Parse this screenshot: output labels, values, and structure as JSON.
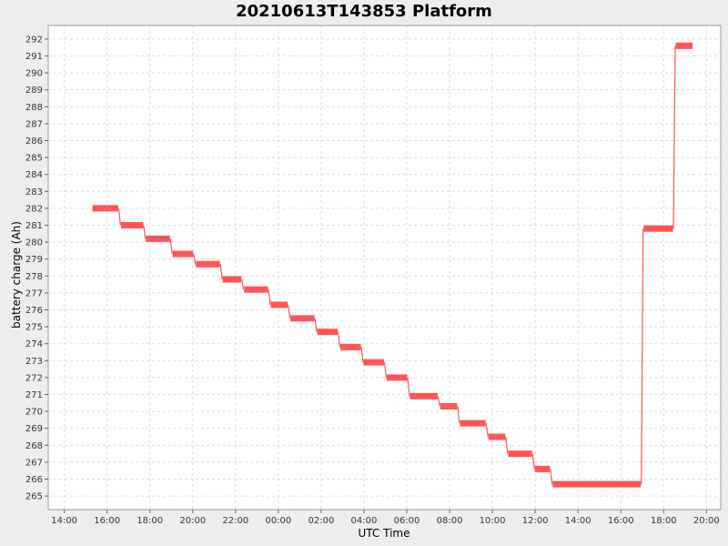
{
  "chart_data": {
    "type": "line",
    "title": "20210613T143853 Platform",
    "xlabel": "UTC Time",
    "ylabel": "battery charge (Ah)",
    "x_ticks": [
      "14:00",
      "16:00",
      "18:00",
      "20:00",
      "22:00",
      "00:00",
      "02:00",
      "04:00",
      "06:00",
      "08:00",
      "10:00",
      "12:00",
      "14:00",
      "16:00",
      "18:00",
      "20:00"
    ],
    "y_ticks": [
      "265",
      "266",
      "267",
      "268",
      "269",
      "270",
      "271",
      "272",
      "273",
      "274",
      "275",
      "276",
      "277",
      "278",
      "279",
      "280",
      "281",
      "282",
      "283",
      "284",
      "285",
      "286",
      "287",
      "288",
      "289",
      "290",
      "291",
      "292"
    ],
    "xlim": [
      "13:15",
      "20:40 (+1 day)"
    ],
    "ylim": [
      264.2,
      292.8
    ],
    "grid": true,
    "legend": "none",
    "color": "#ff5555",
    "series": [
      {
        "name": "",
        "segments": [
          {
            "start": "15:15",
            "end": "16:35",
            "value": 282.0
          },
          {
            "start": "16:35",
            "end": "17:45",
            "value": 281.0
          },
          {
            "start": "17:45",
            "end": "19:00",
            "value": 280.2
          },
          {
            "start": "19:00",
            "end": "20:05",
            "value": 279.3
          },
          {
            "start": "20:05",
            "end": "21:20",
            "value": 278.7
          },
          {
            "start": "21:20",
            "end": "22:20",
            "value": 277.8
          },
          {
            "start": "22:20",
            "end": "23:35",
            "value": 277.2
          },
          {
            "start": "23:35",
            "end": "00:30",
            "value": 276.3
          },
          {
            "start": "00:30",
            "end": "01:45",
            "value": 275.5
          },
          {
            "start": "01:45",
            "end": "02:50",
            "value": 274.7
          },
          {
            "start": "02:50",
            "end": "03:55",
            "value": 273.8
          },
          {
            "start": "03:55",
            "end": "05:00",
            "value": 272.9
          },
          {
            "start": "05:00",
            "end": "06:05",
            "value": 272.0
          },
          {
            "start": "06:05",
            "end": "07:30",
            "value": 270.9
          },
          {
            "start": "07:30",
            "end": "08:25",
            "value": 270.3
          },
          {
            "start": "08:25",
            "end": "09:45",
            "value": 269.3
          },
          {
            "start": "09:45",
            "end": "10:40",
            "value": 268.5
          },
          {
            "start": "10:40",
            "end": "11:55",
            "value": 267.5
          },
          {
            "start": "11:55",
            "end": "12:45",
            "value": 266.6
          },
          {
            "start": "12:45",
            "end": "17:00",
            "value": 265.7
          },
          {
            "start": "17:00",
            "end": "18:30",
            "value": 280.8
          },
          {
            "start": "18:30",
            "end": "19:25",
            "value": 291.6
          }
        ]
      }
    ]
  }
}
